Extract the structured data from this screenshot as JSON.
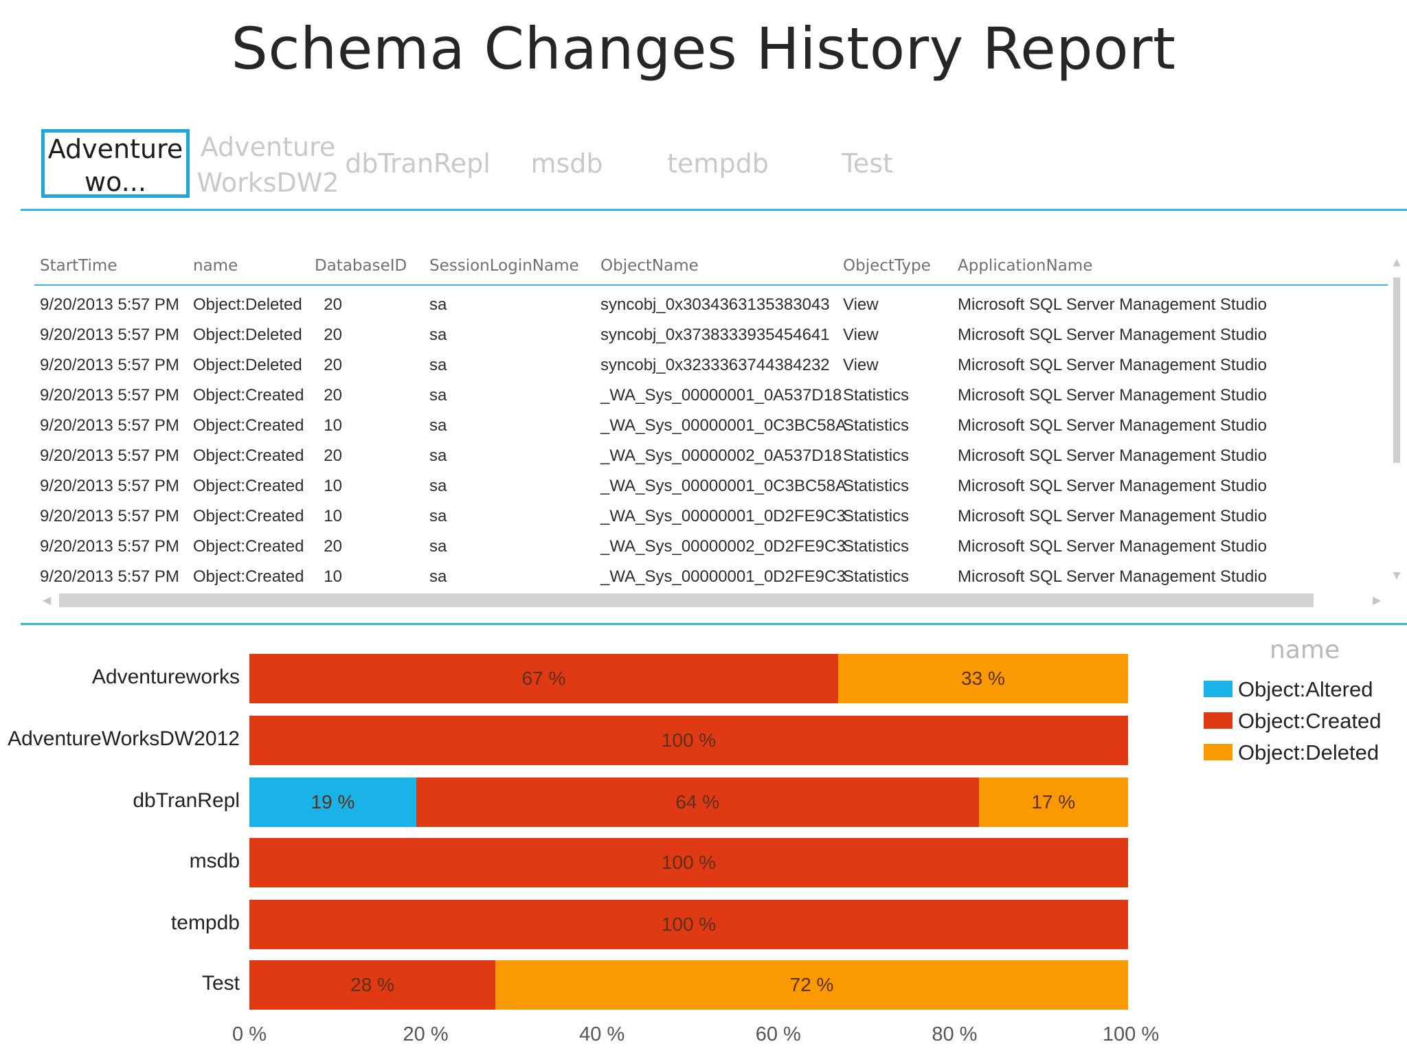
{
  "title": "Schema Changes History Report",
  "tiles": [
    {
      "line1": "Adventure",
      "line2": "wo...",
      "selected": true
    },
    {
      "line1": "Adventure",
      "line2": "WorksDW2",
      "selected": false
    },
    {
      "label": "dbTranRepl",
      "selected": false
    },
    {
      "label": "msdb",
      "selected": false
    },
    {
      "label": "tempdb",
      "selected": false
    },
    {
      "label": "Test",
      "selected": false
    }
  ],
  "table": {
    "columns": [
      "StartTime",
      "name",
      "DatabaseID",
      "SessionLoginName",
      "ObjectName",
      "ObjectType",
      "ApplicationName"
    ],
    "rows": [
      [
        "9/20/2013 5:57 PM",
        "Object:Deleted",
        "20",
        "sa",
        "syncobj_0x3034363135383043",
        "View",
        "Microsoft SQL Server Management Studio"
      ],
      [
        "9/20/2013 5:57 PM",
        "Object:Deleted",
        "20",
        "sa",
        "syncobj_0x3738333935454641",
        "View",
        "Microsoft SQL Server Management Studio"
      ],
      [
        "9/20/2013 5:57 PM",
        "Object:Deleted",
        "20",
        "sa",
        "syncobj_0x3233363744384232",
        "View",
        "Microsoft SQL Server Management Studio"
      ],
      [
        "9/20/2013 5:57 PM",
        "Object:Created",
        "20",
        "sa",
        "_WA_Sys_00000001_0A537D18",
        "Statistics",
        "Microsoft SQL Server Management Studio"
      ],
      [
        "9/20/2013 5:57 PM",
        "Object:Created",
        "10",
        "sa",
        "_WA_Sys_00000001_0C3BC58A",
        "Statistics",
        "Microsoft SQL Server Management Studio"
      ],
      [
        "9/20/2013 5:57 PM",
        "Object:Created",
        "20",
        "sa",
        "_WA_Sys_00000002_0A537D18",
        "Statistics",
        "Microsoft SQL Server Management Studio"
      ],
      [
        "9/20/2013 5:57 PM",
        "Object:Created",
        "10",
        "sa",
        "_WA_Sys_00000001_0C3BC58A",
        "Statistics",
        "Microsoft SQL Server Management Studio"
      ],
      [
        "9/20/2013 5:57 PM",
        "Object:Created",
        "10",
        "sa",
        "_WA_Sys_00000001_0D2FE9C3",
        "Statistics",
        "Microsoft SQL Server Management Studio"
      ],
      [
        "9/20/2013 5:57 PM",
        "Object:Created",
        "20",
        "sa",
        "_WA_Sys_00000002_0D2FE9C3",
        "Statistics",
        "Microsoft SQL Server Management Studio"
      ],
      [
        "9/20/2013 5:57 PM",
        "Object:Created",
        "10",
        "sa",
        "_WA_Sys_00000001_0D2FE9C3",
        "Statistics",
        "Microsoft SQL Server Management Studio"
      ]
    ]
  },
  "colors": {
    "accent": "#35b7e0",
    "altered": "#1ab3e8",
    "created": "#e03a14",
    "deleted": "#fa9a00"
  },
  "chart_data": {
    "type": "bar",
    "orientation": "horizontal",
    "stacked": "percent",
    "categories": [
      "Adventureworks",
      "AdventureWorksDW2012",
      "dbTranRepl",
      "msdb",
      "tempdb",
      "Test"
    ],
    "series": [
      {
        "name": "Object:Altered",
        "values": [
          0,
          0,
          19,
          0,
          0,
          0
        ]
      },
      {
        "name": "Object:Created",
        "values": [
          67,
          100,
          64,
          100,
          100,
          28
        ]
      },
      {
        "name": "Object:Deleted",
        "values": [
          33,
          0,
          17,
          0,
          0,
          72
        ]
      }
    ],
    "legend_title": "name",
    "xticks": [
      "0 %",
      "20 %",
      "40 %",
      "60 %",
      "80 %",
      "100 %"
    ],
    "xlim": [
      0,
      100
    ],
    "legend_position": "right"
  }
}
